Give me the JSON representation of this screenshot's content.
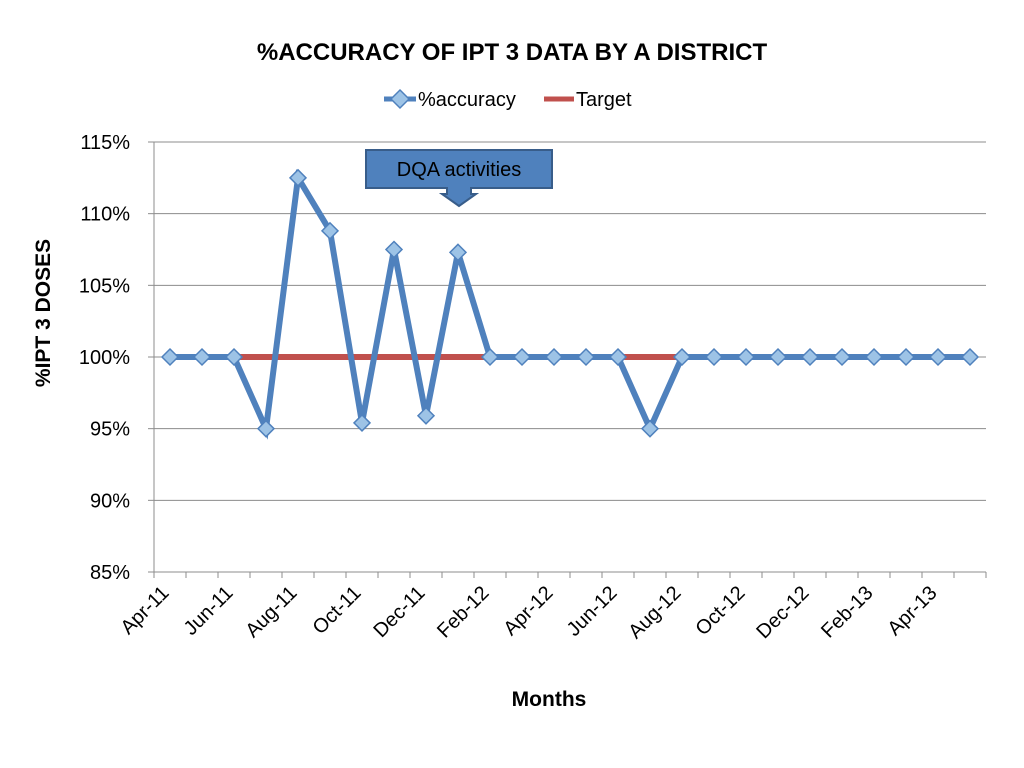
{
  "chart_data": {
    "type": "line",
    "title": "%ACCURACY OF IPT 3 DATA BY A DISTRICT",
    "xlabel": "Months",
    "ylabel": "%IPT 3 DOSES",
    "ylim": [
      85,
      115
    ],
    "yticks": [
      85,
      90,
      95,
      100,
      105,
      110,
      115
    ],
    "ytick_suffix": "%",
    "grid": true,
    "legend_position": "top",
    "x": [
      "Apr-11",
      "May-11",
      "Jun-11",
      "Jul-11",
      "Aug-11",
      "Sep-11",
      "Oct-11",
      "Nov-11",
      "Dec-11",
      "Jan-12",
      "Feb-12",
      "Mar-12",
      "Apr-12",
      "May-12",
      "Jun-12",
      "Jul-12",
      "Aug-12",
      "Sep-12",
      "Oct-12",
      "Nov-12",
      "Dec-12",
      "Jan-13",
      "Feb-13",
      "Mar-13",
      "Apr-13",
      "May-13"
    ],
    "x_tick_labels_shown": [
      "Apr-11",
      "Jun-11",
      "Aug-11",
      "Oct-11",
      "Dec-11",
      "Feb-12",
      "Apr-12",
      "Jun-12",
      "Aug-12",
      "Oct-12",
      "Dec-12",
      "Feb-13",
      "Apr-13"
    ],
    "series": [
      {
        "name": "%accuracy",
        "color": "#4F81BD",
        "marker": "diamond",
        "values": [
          100,
          100,
          100,
          95,
          112.5,
          108.8,
          95.4,
          107.5,
          95.9,
          107.3,
          100,
          100,
          100,
          100,
          100,
          95,
          100,
          100,
          100,
          100,
          100,
          100,
          100,
          100,
          100,
          100
        ]
      },
      {
        "name": "Target",
        "color": "#C0504D",
        "marker": "none",
        "values": [
          100,
          100,
          100,
          100,
          100,
          100,
          100,
          100,
          100,
          100,
          100,
          100,
          100,
          100,
          100,
          100,
          100,
          100,
          100,
          100,
          100,
          100,
          100,
          100,
          100,
          100
        ]
      }
    ],
    "annotations": [
      {
        "text": "DQA activities",
        "points_to": "Jan-12"
      }
    ]
  }
}
